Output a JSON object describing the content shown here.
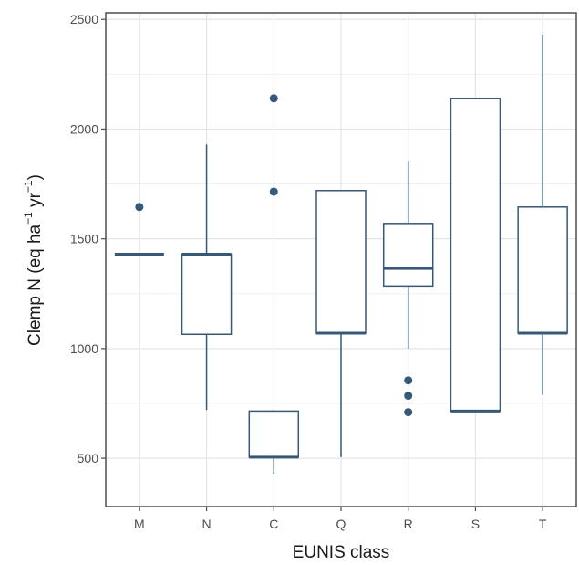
{
  "chart_data": {
    "type": "box",
    "xlabel": "EUNIS class",
    "ylabel": {
      "prefix": "Clemp N  (eq  ha",
      "sup1": "−1",
      "middle": "  yr",
      "sup2": "−1",
      "suffix": ")"
    },
    "categories": [
      "M",
      "N",
      "C",
      "Q",
      "R",
      "S",
      "T"
    ],
    "ylim": [
      280,
      2530
    ],
    "yticks": [
      500,
      1000,
      1500,
      2000,
      2500
    ],
    "grid": true,
    "box_color": "#34597f",
    "boxes": [
      {
        "category": "M",
        "whisker_low": 1430,
        "q1": 1430,
        "median": 1430,
        "q3": 1430,
        "whisker_high": 1430,
        "outliers": [
          1645
        ]
      },
      {
        "category": "N",
        "whisker_low": 720,
        "q1": 1065,
        "median": 1430,
        "q3": 1430,
        "whisker_high": 1930,
        "outliers": []
      },
      {
        "category": "C",
        "whisker_low": 430,
        "q1": 505,
        "median": 505,
        "q3": 715,
        "whisker_high": 715,
        "outliers": [
          1715,
          2140
        ]
      },
      {
        "category": "Q",
        "whisker_low": 505,
        "q1": 1070,
        "median": 1070,
        "q3": 1720,
        "whisker_high": 1720,
        "outliers": []
      },
      {
        "category": "R",
        "whisker_low": 1000,
        "q1": 1285,
        "median": 1365,
        "q3": 1570,
        "whisker_high": 1855,
        "outliers": [
          855,
          785,
          710
        ]
      },
      {
        "category": "S",
        "whisker_low": 715,
        "q1": 715,
        "median": 715,
        "q3": 2140,
        "whisker_high": 2140,
        "outliers": []
      },
      {
        "category": "T",
        "whisker_low": 790,
        "q1": 1070,
        "median": 1070,
        "q3": 1645,
        "whisker_high": 2430,
        "outliers": []
      }
    ]
  }
}
